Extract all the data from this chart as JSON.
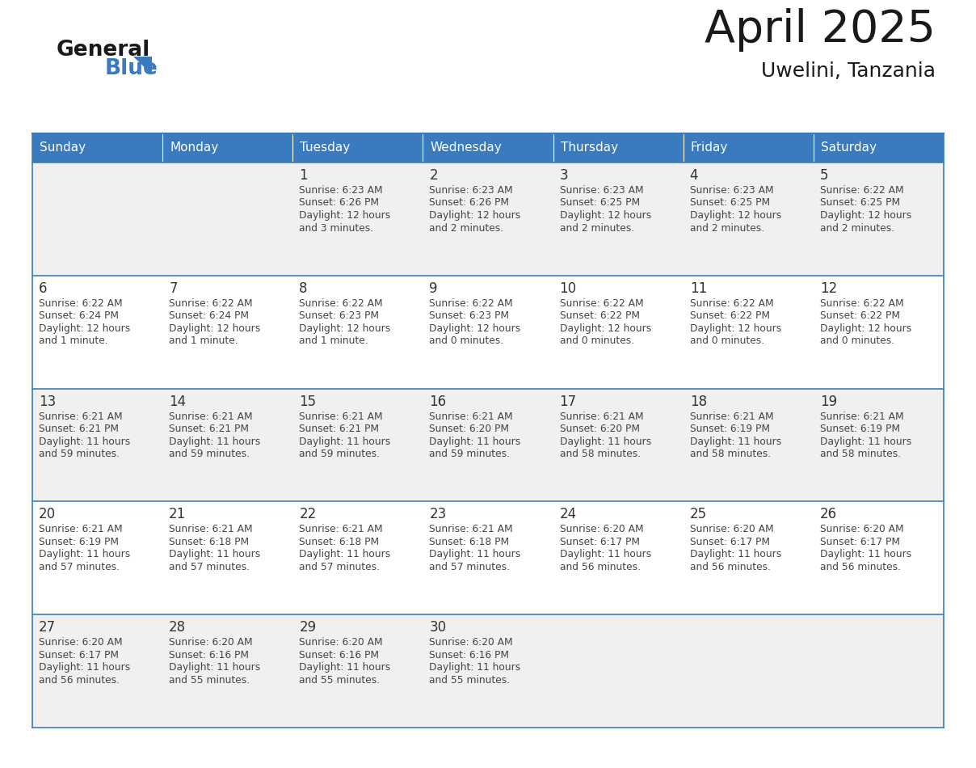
{
  "title": "April 2025",
  "subtitle": "Uwelini, Tanzania",
  "header_bg_color": "#3a7bbf",
  "header_text_color": "#ffffff",
  "days_of_week": [
    "Sunday",
    "Monday",
    "Tuesday",
    "Wednesday",
    "Thursday",
    "Friday",
    "Saturday"
  ],
  "row_bg_colors": [
    "#f0f0f0",
    "#ffffff",
    "#f0f0f0",
    "#ffffff",
    "#f0f0f0"
  ],
  "cell_border_color": "#3a7bbf",
  "day_text_color": "#333333",
  "info_text_color": "#444444",
  "logo_general_color": "#1a1a1a",
  "logo_blue_color": "#3a7bbf",
  "logo_triangle_color": "#3a7bbf",
  "calendar_data": [
    [
      null,
      null,
      {
        "day": 1,
        "sunrise": "6:23 AM",
        "sunset": "6:26 PM",
        "daylight": "12 hours and 3 minutes."
      },
      {
        "day": 2,
        "sunrise": "6:23 AM",
        "sunset": "6:26 PM",
        "daylight": "12 hours and 2 minutes."
      },
      {
        "day": 3,
        "sunrise": "6:23 AM",
        "sunset": "6:25 PM",
        "daylight": "12 hours and 2 minutes."
      },
      {
        "day": 4,
        "sunrise": "6:23 AM",
        "sunset": "6:25 PM",
        "daylight": "12 hours and 2 minutes."
      },
      {
        "day": 5,
        "sunrise": "6:22 AM",
        "sunset": "6:25 PM",
        "daylight": "12 hours and 2 minutes."
      }
    ],
    [
      {
        "day": 6,
        "sunrise": "6:22 AM",
        "sunset": "6:24 PM",
        "daylight": "12 hours and 1 minute."
      },
      {
        "day": 7,
        "sunrise": "6:22 AM",
        "sunset": "6:24 PM",
        "daylight": "12 hours and 1 minute."
      },
      {
        "day": 8,
        "sunrise": "6:22 AM",
        "sunset": "6:23 PM",
        "daylight": "12 hours and 1 minute."
      },
      {
        "day": 9,
        "sunrise": "6:22 AM",
        "sunset": "6:23 PM",
        "daylight": "12 hours and 0 minutes."
      },
      {
        "day": 10,
        "sunrise": "6:22 AM",
        "sunset": "6:22 PM",
        "daylight": "12 hours and 0 minutes."
      },
      {
        "day": 11,
        "sunrise": "6:22 AM",
        "sunset": "6:22 PM",
        "daylight": "12 hours and 0 minutes."
      },
      {
        "day": 12,
        "sunrise": "6:22 AM",
        "sunset": "6:22 PM",
        "daylight": "12 hours and 0 minutes."
      }
    ],
    [
      {
        "day": 13,
        "sunrise": "6:21 AM",
        "sunset": "6:21 PM",
        "daylight": "11 hours and 59 minutes."
      },
      {
        "day": 14,
        "sunrise": "6:21 AM",
        "sunset": "6:21 PM",
        "daylight": "11 hours and 59 minutes."
      },
      {
        "day": 15,
        "sunrise": "6:21 AM",
        "sunset": "6:21 PM",
        "daylight": "11 hours and 59 minutes."
      },
      {
        "day": 16,
        "sunrise": "6:21 AM",
        "sunset": "6:20 PM",
        "daylight": "11 hours and 59 minutes."
      },
      {
        "day": 17,
        "sunrise": "6:21 AM",
        "sunset": "6:20 PM",
        "daylight": "11 hours and 58 minutes."
      },
      {
        "day": 18,
        "sunrise": "6:21 AM",
        "sunset": "6:19 PM",
        "daylight": "11 hours and 58 minutes."
      },
      {
        "day": 19,
        "sunrise": "6:21 AM",
        "sunset": "6:19 PM",
        "daylight": "11 hours and 58 minutes."
      }
    ],
    [
      {
        "day": 20,
        "sunrise": "6:21 AM",
        "sunset": "6:19 PM",
        "daylight": "11 hours and 57 minutes."
      },
      {
        "day": 21,
        "sunrise": "6:21 AM",
        "sunset": "6:18 PM",
        "daylight": "11 hours and 57 minutes."
      },
      {
        "day": 22,
        "sunrise": "6:21 AM",
        "sunset": "6:18 PM",
        "daylight": "11 hours and 57 minutes."
      },
      {
        "day": 23,
        "sunrise": "6:21 AM",
        "sunset": "6:18 PM",
        "daylight": "11 hours and 57 minutes."
      },
      {
        "day": 24,
        "sunrise": "6:20 AM",
        "sunset": "6:17 PM",
        "daylight": "11 hours and 56 minutes."
      },
      {
        "day": 25,
        "sunrise": "6:20 AM",
        "sunset": "6:17 PM",
        "daylight": "11 hours and 56 minutes."
      },
      {
        "day": 26,
        "sunrise": "6:20 AM",
        "sunset": "6:17 PM",
        "daylight": "11 hours and 56 minutes."
      }
    ],
    [
      {
        "day": 27,
        "sunrise": "6:20 AM",
        "sunset": "6:17 PM",
        "daylight": "11 hours and 56 minutes."
      },
      {
        "day": 28,
        "sunrise": "6:20 AM",
        "sunset": "6:16 PM",
        "daylight": "11 hours and 55 minutes."
      },
      {
        "day": 29,
        "sunrise": "6:20 AM",
        "sunset": "6:16 PM",
        "daylight": "11 hours and 55 minutes."
      },
      {
        "day": 30,
        "sunrise": "6:20 AM",
        "sunset": "6:16 PM",
        "daylight": "11 hours and 55 minutes."
      },
      null,
      null,
      null
    ]
  ]
}
